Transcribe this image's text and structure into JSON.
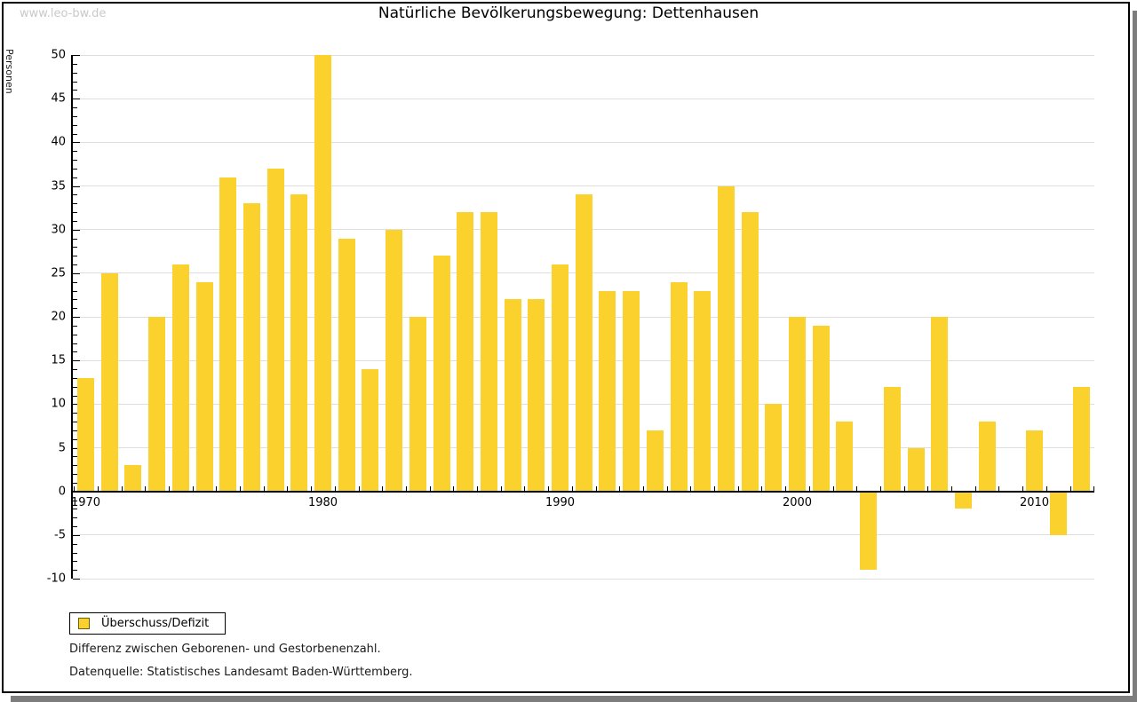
{
  "watermark": "www.leo-bw.de",
  "header": {
    "title": "Natürliche Bevölkerungsbewegung: Dettenhausen"
  },
  "chart_data": {
    "type": "bar",
    "title": "Natürliche Bevölkerungsbewegung: Dettenhausen",
    "xlabel": "",
    "ylabel": "Personen",
    "ylim": [
      -10,
      50
    ],
    "ytick_step": 5,
    "y_minor_step": 1,
    "grid": true,
    "bar_color": "#FBD12E",
    "grid_color": "#dedede",
    "x_tick_labels": [
      "1970",
      "1980",
      "1990",
      "2000",
      "2010"
    ],
    "categories": [
      1970,
      1971,
      1972,
      1973,
      1974,
      1975,
      1976,
      1977,
      1978,
      1979,
      1980,
      1981,
      1982,
      1983,
      1984,
      1985,
      1986,
      1987,
      1988,
      1989,
      1990,
      1991,
      1992,
      1993,
      1994,
      1995,
      1996,
      1997,
      1998,
      1999,
      2000,
      2001,
      2002,
      2003,
      2004,
      2005,
      2006,
      2007,
      2008,
      2009,
      2010,
      2011,
      2012
    ],
    "series": [
      {
        "name": "Überschuss/Defizit",
        "values": [
          13,
          25,
          3,
          20,
          26,
          24,
          36,
          33,
          37,
          34,
          50,
          29,
          14,
          30,
          20,
          27,
          32,
          32,
          22,
          22,
          26,
          34,
          23,
          23,
          7,
          24,
          23,
          35,
          32,
          10,
          20,
          19,
          8,
          -9,
          12,
          5,
          20,
          -2,
          8,
          0,
          7,
          -5,
          12
        ]
      }
    ],
    "legend": {
      "position": "bottom-left",
      "entries": [
        {
          "label": "Überschuss/Defizit",
          "swatch_color": "#FBD12E"
        }
      ]
    }
  },
  "footnotes": [
    "Differenz zwischen Geborenen- und Gestorbenenzahl.",
    "Datenquelle: Statistisches Landesamt Baden-Württemberg."
  ]
}
